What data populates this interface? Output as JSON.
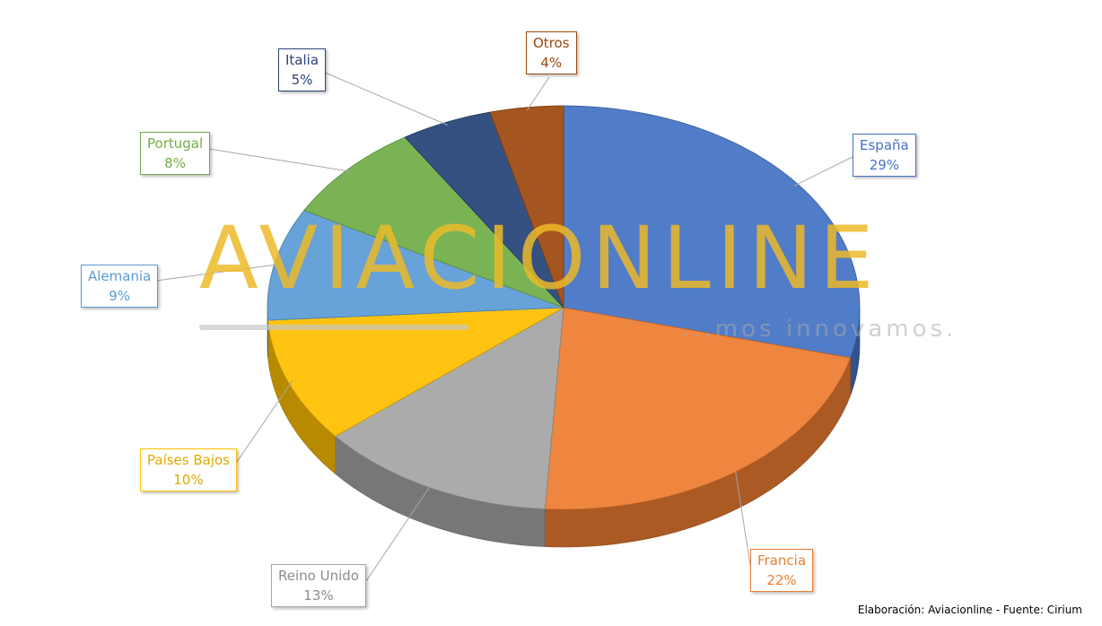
{
  "chart_data": {
    "type": "pie",
    "style": "3d",
    "slices": [
      {
        "label": "España",
        "value": 29,
        "value_label": "29%",
        "color": "#4472C4"
      },
      {
        "label": "Francia",
        "value": 22,
        "value_label": "22%",
        "color": "#ED7D31"
      },
      {
        "label": "Reino Unido",
        "value": 13,
        "value_label": "13%",
        "color": "#A5A5A5"
      },
      {
        "label": "Países Bajos",
        "value": 10,
        "value_label": "10%",
        "color": "#FFC000"
      },
      {
        "label": "Alemania",
        "value": 9,
        "value_label": "9%",
        "color": "#5B9BD5"
      },
      {
        "label": "Portugal",
        "value": 8,
        "value_label": "8%",
        "color": "#70AD47"
      },
      {
        "label": "Italia",
        "value": 5,
        "value_label": "5%",
        "color": "#264478"
      },
      {
        "label": "Otros",
        "value": 4,
        "value_label": "4%",
        "color": "#9E480E"
      }
    ]
  },
  "watermark": {
    "brand": "AVIACIONLINE",
    "tagline": "...mos innovamos."
  },
  "source": "Elaboración: Aviacionline - Fuente: Cirium"
}
